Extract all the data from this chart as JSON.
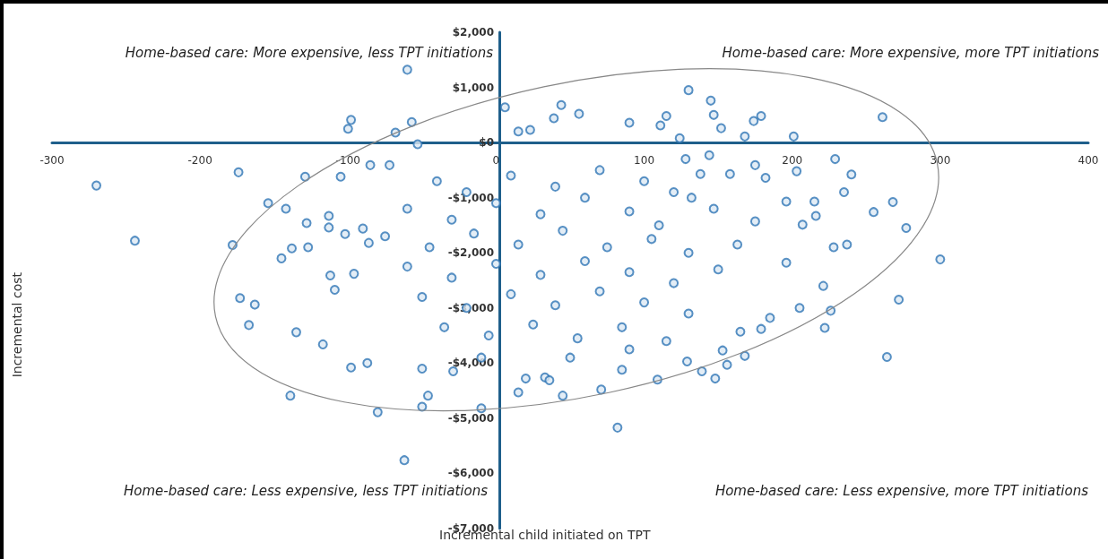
{
  "chart_data": {
    "type": "scatter",
    "xlabel": "Incremental child initiated on TPT",
    "ylabel": "Incremental cost",
    "annotations": [
      "Home-based care: More expensive, less TPT initiations",
      "Home-based care: More expensive, more TPT initiations",
      "Home-based care: Less expensive, less TPT initiations",
      "Home-based care: Less expensive, more TPT initiations"
    ],
    "xlim": [
      -300,
      400
    ],
    "xticks": [
      -300,
      -200,
      -100,
      0,
      100,
      200,
      300,
      400
    ],
    "ylim": [
      -7000,
      2000
    ],
    "yticks": [
      {
        "value": 2000,
        "label": "$2,000"
      },
      {
        "value": 1000,
        "label": "$1,000"
      },
      {
        "value": 0,
        "label": "$0"
      },
      {
        "value": -1000,
        "label": "-$1,000"
      },
      {
        "value": -2000,
        "label": "-$2,000"
      },
      {
        "value": -3000,
        "label": "-$3,000"
      },
      {
        "value": -4000,
        "label": "-$4,000"
      },
      {
        "value": -5000,
        "label": "-$5,000"
      },
      {
        "value": -6000,
        "label": "-$6,000"
      },
      {
        "value": -7000,
        "label": "-$7,000"
      }
    ],
    "grid": false,
    "marker": "circle",
    "series": [
      {
        "color": "#2f75b5",
        "x": [
          -270,
          -244,
          -178,
          -174,
          -60,
          -98,
          -100,
          -57,
          -68,
          -53,
          6,
          15,
          23,
          44,
          56,
          39,
          130,
          145,
          147,
          179,
          174,
          261,
          201,
          168,
          124,
          152,
          90,
          115,
          111,
          300,
          277,
          268,
          229,
          240,
          235,
          255,
          272,
          264,
          226,
          222,
          221,
          237,
          228,
          215,
          216,
          196,
          203,
          182,
          175,
          158,
          144,
          128,
          138,
          163,
          196,
          207,
          175,
          147,
          132,
          205,
          185,
          179,
          165,
          168,
          153,
          156,
          148,
          139,
          129,
          109,
          85,
          71,
          45,
          33,
          82,
          36,
          20,
          15,
          -10,
          -29,
          -50,
          -46,
          -50,
          -80,
          -62,
          -139,
          -87,
          -98,
          -117,
          -135,
          -163,
          -173,
          -167,
          -145,
          -138,
          -127,
          -112,
          -109,
          -96,
          -102,
          -86,
          -90,
          -129,
          -154,
          -142,
          -128,
          -113,
          -113,
          -85,
          -72,
          -105,
          -40,
          -20,
          10,
          40,
          70,
          100,
          120,
          -60,
          -30,
          0,
          30,
          60,
          90,
          110,
          -75,
          -45,
          -15,
          15,
          45,
          75,
          105,
          130,
          -60,
          -30,
          0,
          30,
          60,
          90,
          120,
          150,
          -50,
          -20,
          10,
          40,
          70,
          100,
          130,
          -35,
          -5,
          25,
          55,
          85,
          115,
          -10,
          50,
          90
        ],
        "values": [
          -780,
          -1780,
          -1860,
          -540,
          1320,
          410,
          250,
          370,
          180,
          -30,
          640,
          200,
          230,
          680,
          520,
          440,
          950,
          760,
          500,
          480,
          390,
          460,
          110,
          110,
          80,
          260,
          360,
          480,
          310,
          -2120,
          -1550,
          -1080,
          -300,
          -580,
          -900,
          -1260,
          -2850,
          -3890,
          -3050,
          -3360,
          -2600,
          -1850,
          -1900,
          -1070,
          -1330,
          -1070,
          -520,
          -640,
          -410,
          -570,
          -230,
          -300,
          -570,
          -1850,
          -2180,
          -1490,
          -1430,
          -1200,
          -1000,
          -3000,
          -3180,
          -3380,
          -3430,
          -3870,
          -3770,
          -4030,
          -4280,
          -4150,
          -3970,
          -4300,
          -4120,
          -4480,
          -4590,
          -4260,
          -5170,
          -4310,
          -4280,
          -4530,
          -4820,
          -4150,
          -4100,
          -4590,
          -4790,
          -4890,
          -5760,
          -4590,
          -4000,
          -4080,
          -3660,
          -3440,
          -2940,
          -2820,
          -3310,
          -2100,
          -1920,
          -1900,
          -2410,
          -2670,
          -2380,
          -1660,
          -1820,
          -1560,
          -620,
          -1100,
          -1200,
          -1460,
          -1330,
          -1540,
          -410,
          -410,
          -620,
          -700,
          -900,
          -600,
          -800,
          -500,
          -700,
          -900,
          -1200,
          -1400,
          -1100,
          -1300,
          -1000,
          -1250,
          -1500,
          -1700,
          -1900,
          -1650,
          -1850,
          -1600,
          -1900,
          -1750,
          -2000,
          -2250,
          -2450,
          -2200,
          -2400,
          -2150,
          -2350,
          -2550,
          -2300,
          -2800,
          -3000,
          -2750,
          -2950,
          -2700,
          -2900,
          -3100,
          -3350,
          -3500,
          -3300,
          -3550,
          -3350,
          -3600,
          -3900,
          -3900,
          -3750
        ]
      }
    ]
  }
}
